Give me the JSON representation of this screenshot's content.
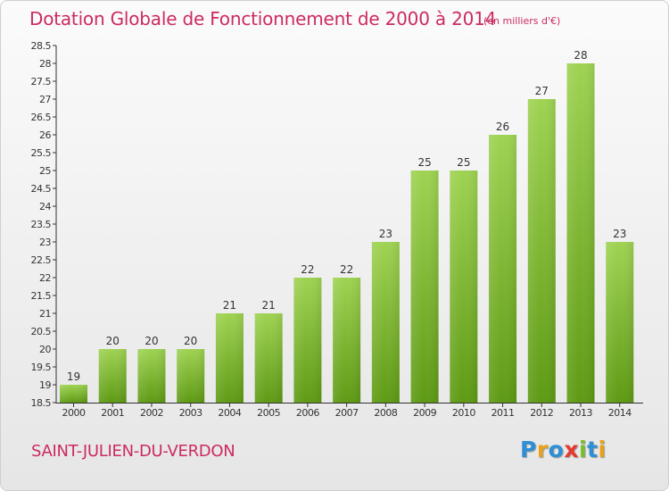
{
  "title": "Dotation Globale de Fonctionnement de 2000 à 2014",
  "subtitle": "(en milliers d'€)",
  "commune": "SAINT-JULIEN-DU-VERDON",
  "logo": {
    "text": "Proxiti",
    "letter_colors": [
      "#2d8fd5",
      "#e8a21a",
      "#2d8fd5",
      "#e63a2e",
      "#7bbd2b",
      "#2d8fd5",
      "#e8a21a"
    ]
  },
  "colors": {
    "title": "#cc2a63",
    "bar_top": "#9fd353",
    "bar_bottom": "#5e9a14",
    "axis": "#333333"
  },
  "chart_data": {
    "type": "bar",
    "categories": [
      "2000",
      "2001",
      "2002",
      "2003",
      "2004",
      "2005",
      "2006",
      "2007",
      "2008",
      "2009",
      "2010",
      "2011",
      "2012",
      "2013",
      "2014"
    ],
    "values": [
      19,
      20,
      20,
      20,
      21,
      21,
      22,
      22,
      23,
      25,
      25,
      26,
      27,
      28,
      23
    ],
    "data_labels": [
      "19",
      "20",
      "20",
      "20",
      "21",
      "21",
      "22",
      "22",
      "23",
      "25",
      "25",
      "26",
      "27",
      "28",
      "23"
    ],
    "ylim": [
      18.5,
      28.5
    ],
    "yticks": [
      "18.5",
      "19",
      "19.5",
      "20",
      "20.5",
      "21",
      "21.5",
      "22",
      "22.5",
      "23",
      "23.5",
      "24",
      "24.5",
      "25",
      "25.5",
      "26",
      "26.5",
      "27",
      "27.5",
      "28",
      "28.5"
    ],
    "xlabel": "",
    "ylabel": "",
    "grid": false,
    "legend": "none"
  }
}
